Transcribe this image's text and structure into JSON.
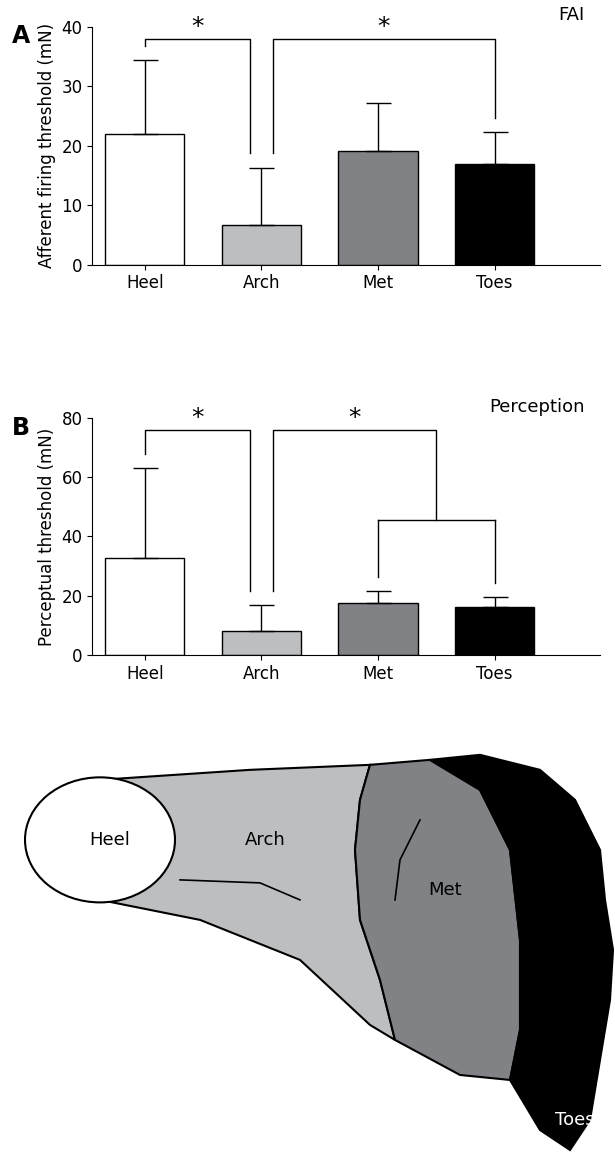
{
  "chart_data": [
    {
      "type": "bar",
      "panel": "A",
      "title": "FAI",
      "ylabel": "Afferent firing threshold (mN)",
      "categories": [
        "Heel",
        "Arch",
        "Met",
        "Toes"
      ],
      "values": [
        22,
        6.7,
        19.1,
        17
      ],
      "errors": [
        12.4,
        9.6,
        8.1,
        5.3
      ],
      "colors": [
        "#ffffff",
        "#bcbec0",
        "#808285",
        "#000000"
      ],
      "ylim": [
        0,
        40
      ],
      "yticks": [
        0,
        10,
        20,
        30,
        40
      ],
      "significance": [
        {
          "from": "Heel",
          "to": "Arch",
          "label": "*"
        },
        {
          "from": "Arch",
          "to": "Toes",
          "label": "*"
        }
      ]
    },
    {
      "type": "bar",
      "panel": "B",
      "title": "Perception",
      "ylabel": "Perceptual threshold (mN)",
      "categories": [
        "Heel",
        "Arch",
        "Met",
        "Toes"
      ],
      "values": [
        32.8,
        8.2,
        17.5,
        16.1
      ],
      "errors": [
        30.3,
        8.5,
        3.9,
        3.3
      ],
      "colors": [
        "#ffffff",
        "#bcbec0",
        "#808285",
        "#000000"
      ],
      "ylim": [
        0,
        80
      ],
      "yticks": [
        0,
        20,
        40,
        60,
        80
      ],
      "significance": [
        {
          "from": "Heel",
          "to": "Arch",
          "label": "*"
        },
        {
          "from": "Arch",
          "to": [
            "Met",
            "Toes"
          ],
          "label": "*"
        }
      ]
    }
  ],
  "diagram": {
    "regions": [
      "Heel",
      "Arch",
      "Met",
      "Toes"
    ]
  }
}
